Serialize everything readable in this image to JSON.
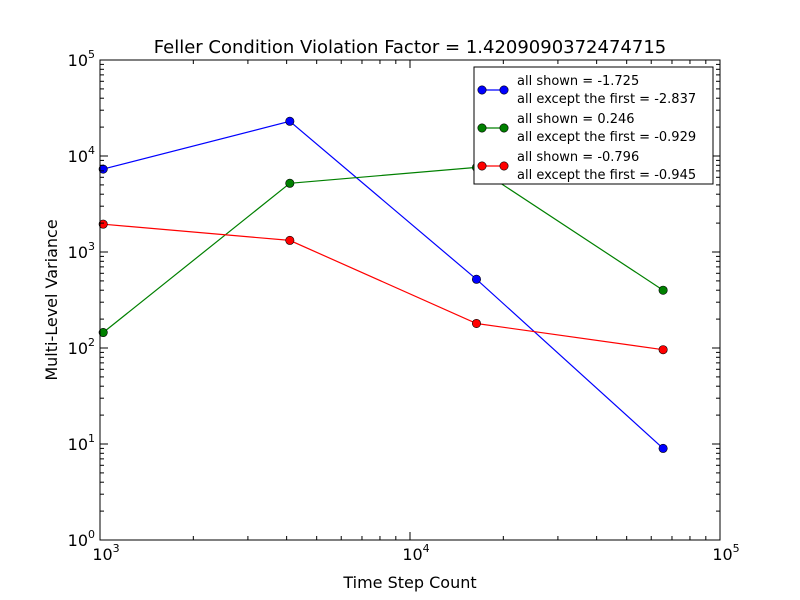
{
  "chart_data": {
    "type": "line",
    "title": "Feller Condition Violation Factor = 1.4209090372474715",
    "xlabel": "Time Step Count",
    "ylabel": "Multi-Level Variance",
    "xscale": "log",
    "yscale": "log",
    "xlim": [
      1000,
      100000
    ],
    "ylim": [
      1,
      100000
    ],
    "grid": false,
    "legend_position": "top-right",
    "x_ticks": [
      {
        "value": 1000,
        "base": "10",
        "exp": "3"
      },
      {
        "value": 10000,
        "base": "10",
        "exp": "4"
      },
      {
        "value": 100000,
        "base": "10",
        "exp": "5"
      }
    ],
    "y_ticks": [
      {
        "value": 1,
        "base": "10",
        "exp": "0"
      },
      {
        "value": 10,
        "base": "10",
        "exp": "1"
      },
      {
        "value": 100,
        "base": "10",
        "exp": "2"
      },
      {
        "value": 1000,
        "base": "10",
        "exp": "3"
      },
      {
        "value": 10000,
        "base": "10",
        "exp": "4"
      },
      {
        "value": 100000,
        "base": "10",
        "exp": "5"
      }
    ],
    "x": [
      1024,
      4096,
      16384,
      65536
    ],
    "series": [
      {
        "legend_line1": "all shown = -1.725",
        "legend_line2": "all except the first = -2.837",
        "color": "#0000ff",
        "values": [
          7300,
          23000,
          520,
          9
        ]
      },
      {
        "legend_line1": "all shown = 0.246",
        "legend_line2": "all except the first = -0.929",
        "color": "#008000",
        "values": [
          145,
          5200,
          7600,
          400
        ]
      },
      {
        "legend_line1": "all shown = -0.796",
        "legend_line2": "all except the first = -0.945",
        "color": "#ff0000",
        "values": [
          1950,
          1320,
          180,
          96
        ]
      }
    ]
  }
}
